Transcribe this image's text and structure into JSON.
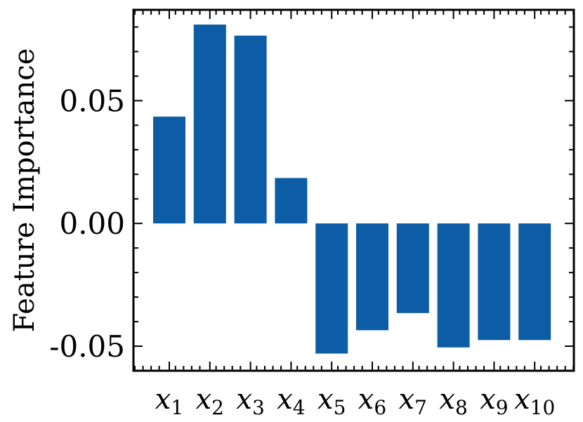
{
  "chart_data": {
    "type": "bar",
    "categories": [
      {
        "base": "x",
        "sub": "1"
      },
      {
        "base": "x",
        "sub": "2"
      },
      {
        "base": "x",
        "sub": "3"
      },
      {
        "base": "x",
        "sub": "4"
      },
      {
        "base": "x",
        "sub": "5"
      },
      {
        "base": "x",
        "sub": "6"
      },
      {
        "base": "x",
        "sub": "7"
      },
      {
        "base": "x",
        "sub": "8"
      },
      {
        "base": "x",
        "sub": "9"
      },
      {
        "base": "x",
        "sub": "10"
      }
    ],
    "values": [
      0.0435,
      0.081,
      0.0765,
      0.0185,
      -0.053,
      -0.0435,
      -0.0365,
      -0.0505,
      -0.0475,
      -0.0475
    ],
    "ylabel": "Feature Importance",
    "ylim": [
      -0.06,
      0.087
    ],
    "yticks": [
      -0.05,
      0.0,
      0.05
    ],
    "ytick_labels": [
      "-0.05",
      "0.00",
      "0.05"
    ],
    "bar_color": "#0c5da5",
    "grid": false
  }
}
